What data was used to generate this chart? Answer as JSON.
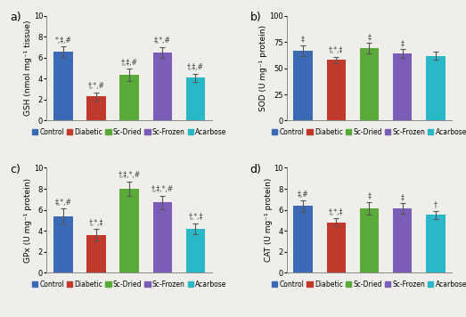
{
  "subplots": [
    {
      "label": "a)",
      "ylabel": "GSH (nmol mg⁻¹ tissue)",
      "ylim": [
        0,
        10
      ],
      "yticks": [
        0,
        2,
        4,
        6,
        8,
        10
      ],
      "values": [
        6.6,
        2.3,
        4.35,
        6.5,
        4.1
      ],
      "errors": [
        0.5,
        0.4,
        0.6,
        0.55,
        0.4
      ],
      "annotations": [
        "*,‡,#",
        "†,*,#",
        "†,‡,#",
        "‡,*,#",
        "†,‡,#"
      ]
    },
    {
      "label": "b)",
      "ylabel": "SOD (U mg⁻¹ protein)",
      "ylim": [
        0,
        100
      ],
      "yticks": [
        0,
        25,
        50,
        75,
        100
      ],
      "values": [
        67,
        58,
        69,
        64,
        62
      ],
      "errors": [
        5,
        3,
        5,
        4,
        4
      ],
      "annotations": [
        "‡",
        "†,*,‡",
        "‡",
        "‡",
        ""
      ]
    },
    {
      "label": "c)",
      "ylabel": "GPx (U mg⁻¹ protein)",
      "ylim": [
        0,
        10
      ],
      "yticks": [
        0,
        2,
        4,
        6,
        8,
        10
      ],
      "values": [
        5.4,
        3.6,
        8.0,
        6.7,
        4.2
      ],
      "errors": [
        0.7,
        0.55,
        0.7,
        0.65,
        0.5
      ],
      "annotations": [
        "‡,*,#",
        "†,*,‡",
        "†,‡,*,#",
        "†,‡,*,#",
        "†,*,‡"
      ]
    },
    {
      "label": "d)",
      "ylabel": "CAT (U mg⁻¹ protein)",
      "ylim": [
        0,
        10
      ],
      "yticks": [
        0,
        2,
        4,
        6,
        8,
        10
      ],
      "values": [
        6.35,
        4.8,
        6.15,
        6.1,
        5.5
      ],
      "errors": [
        0.55,
        0.4,
        0.6,
        0.5,
        0.4
      ],
      "annotations": [
        "‡,#",
        "†,*,‡",
        "‡",
        "‡",
        "†"
      ]
    }
  ],
  "categories": [
    "Control",
    "Diabetic",
    "Sc-Dried",
    "Sc-Frozen",
    "Acarbose"
  ],
  "bar_colors": [
    "#3a6ab5",
    "#c0392b",
    "#5aaa3a",
    "#7b5cb8",
    "#29b8c8"
  ],
  "background_color": "#f0eeeb",
  "bar_width": 0.58,
  "legend_fontsize": 5.5,
  "axis_fontsize": 6.5,
  "tick_fontsize": 6,
  "annot_fontsize": 5.5,
  "label_fontsize": 9
}
